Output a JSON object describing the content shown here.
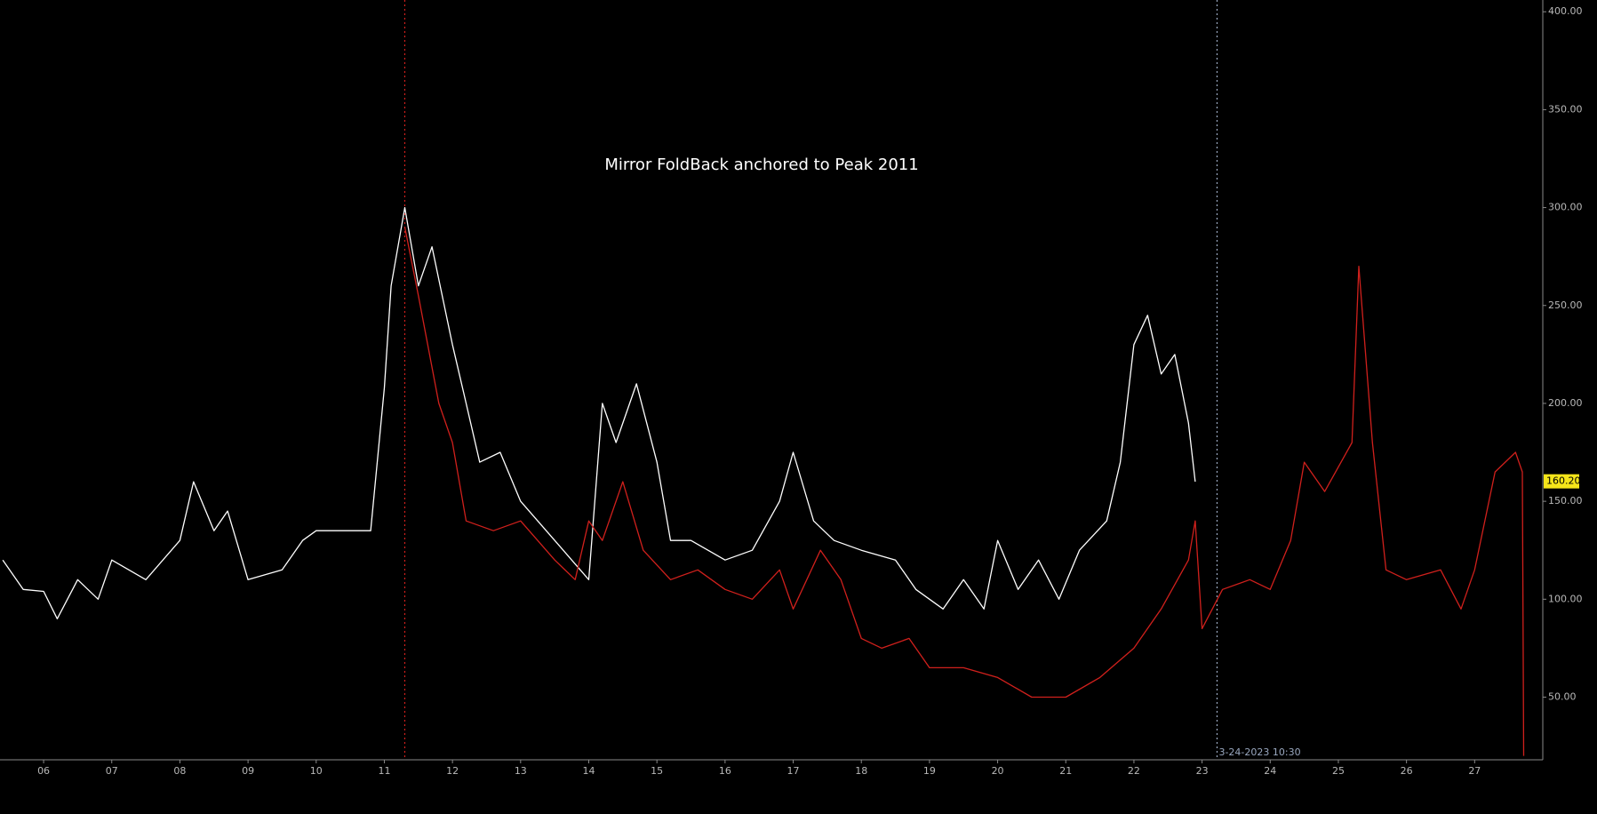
{
  "chart_data": {
    "type": "line",
    "title": "Mirror FoldBack anchored to Peak 2011",
    "xlim": [
      2005.36,
      2028.0
    ],
    "ylim": [
      18,
      406
    ],
    "xticks": [
      {
        "value": 2006,
        "label": "06"
      },
      {
        "value": 2007,
        "label": "07"
      },
      {
        "value": 2008,
        "label": "08"
      },
      {
        "value": 2009,
        "label": "09"
      },
      {
        "value": 2010,
        "label": "10"
      },
      {
        "value": 2011,
        "label": "11"
      },
      {
        "value": 2012,
        "label": "12"
      },
      {
        "value": 2013,
        "label": "13"
      },
      {
        "value": 2014,
        "label": "14"
      },
      {
        "value": 2015,
        "label": "15"
      },
      {
        "value": 2016,
        "label": "16"
      },
      {
        "value": 2017,
        "label": "17"
      },
      {
        "value": 2018,
        "label": "18"
      },
      {
        "value": 2019,
        "label": "19"
      },
      {
        "value": 2020,
        "label": "20"
      },
      {
        "value": 2021,
        "label": "21"
      },
      {
        "value": 2022,
        "label": "22"
      },
      {
        "value": 2023,
        "label": "23"
      },
      {
        "value": 2024,
        "label": "24"
      },
      {
        "value": 2025,
        "label": "25"
      },
      {
        "value": 2026,
        "label": "26"
      },
      {
        "value": 2027,
        "label": "27"
      }
    ],
    "yticks": [
      {
        "value": 50,
        "label": "50.00"
      },
      {
        "value": 100,
        "label": "100.00"
      },
      {
        "value": 150,
        "label": "150.00"
      },
      {
        "value": 200,
        "label": "200.00"
      },
      {
        "value": 250,
        "label": "250.00"
      },
      {
        "value": 300,
        "label": "300.00"
      },
      {
        "value": 350,
        "label": "350.00"
      },
      {
        "value": 400,
        "label": "400.00"
      }
    ],
    "series": [
      {
        "color": "#ffffff",
        "x": [
          2005.4,
          2005.7,
          2006.0,
          2006.2,
          2006.5,
          2006.8,
          2007.0,
          2007.5,
          2008.0,
          2008.2,
          2008.5,
          2008.7,
          2009.0,
          2009.5,
          2009.8,
          2010.0,
          2010.5,
          2010.8,
          2011.0,
          2011.1,
          2011.3,
          2011.5,
          2011.7,
          2012.0,
          2012.2,
          2012.4,
          2012.7,
          2013.0,
          2013.5,
          2014.0,
          2014.2,
          2014.4,
          2014.7,
          2015.0,
          2015.2,
          2015.5,
          2016.0,
          2016.4,
          2016.8,
          2017.0,
          2017.3,
          2017.6,
          2018.0,
          2018.5,
          2018.8,
          2019.2,
          2019.5,
          2019.8,
          2020.0,
          2020.3,
          2020.6,
          2020.9,
          2021.2,
          2021.6,
          2021.8,
          2022.0,
          2022.2,
          2022.4,
          2022.6,
          2022.8,
          2022.9
        ],
        "values": [
          120,
          105,
          104,
          90,
          110,
          100,
          120,
          110,
          130,
          160,
          135,
          145,
          110,
          115,
          130,
          135,
          135,
          135,
          208,
          260,
          300,
          260,
          280,
          230,
          200,
          170,
          175,
          150,
          130,
          110,
          200,
          180,
          210,
          170,
          130,
          130,
          120,
          125,
          150,
          175,
          140,
          130,
          125,
          120,
          105,
          95,
          110,
          95,
          130,
          105,
          120,
          100,
          125,
          140,
          170,
          230,
          245,
          215,
          225,
          190,
          160
        ]
      },
      {
        "color": "#d0201c",
        "x": [
          2011.3,
          2011.5,
          2011.8,
          2012.0,
          2012.2,
          2012.6,
          2013.0,
          2013.5,
          2013.8,
          2014.0,
          2014.2,
          2014.5,
          2014.8,
          2015.2,
          2015.6,
          2016.0,
          2016.4,
          2016.8,
          2017.0,
          2017.4,
          2017.7,
          2018.0,
          2018.3,
          2018.7,
          2019.0,
          2019.5,
          2020.0,
          2020.5,
          2021.0,
          2021.5,
          2022.0,
          2022.4,
          2022.8,
          2022.9,
          2023.0,
          2023.3,
          2023.7,
          2024.0,
          2024.3,
          2024.5,
          2024.8,
          2025.2,
          2025.3,
          2025.5,
          2025.7,
          2026.0,
          2026.5,
          2026.8,
          2027.0,
          2027.3,
          2027.6,
          2027.7,
          2027.72
        ],
        "values": [
          290,
          255,
          200,
          180,
          140,
          135,
          140,
          120,
          110,
          140,
          130,
          160,
          125,
          110,
          115,
          105,
          100,
          115,
          95,
          125,
          110,
          80,
          75,
          80,
          65,
          65,
          60,
          50,
          50,
          60,
          75,
          95,
          120,
          140,
          85,
          105,
          110,
          105,
          130,
          170,
          155,
          180,
          270,
          180,
          115,
          110,
          115,
          95,
          115,
          165,
          175,
          165,
          20
        ]
      }
    ],
    "vlines": [
      {
        "x": 2011.3,
        "color": "#d0201c"
      },
      {
        "x": 2023.22,
        "color": "#9aa8c0",
        "label": "3-24-2023 10:30"
      }
    ],
    "last_price": {
      "value": 160.2,
      "label": "160.20"
    }
  }
}
